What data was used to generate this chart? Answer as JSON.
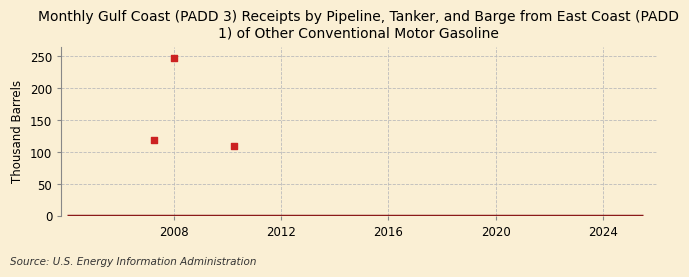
{
  "title": "Monthly Gulf Coast (PADD 3) Receipts by Pipeline, Tanker, and Barge from East Coast (PADD\n1) of Other Conventional Motor Gasoline",
  "ylabel": "Thousand Barrels",
  "source": "Source: U.S. Energy Information Administration",
  "background_color": "#faefd4",
  "plot_bg_color": "#faefd4",
  "line_color": "#8b1a1a",
  "marker_color": "#cc2222",
  "x_start": 2004,
  "x_end": 2025.5,
  "scatter_x": [
    2007.25,
    2008.0,
    2010.25
  ],
  "scatter_y": [
    119,
    248,
    110
  ],
  "xlim": [
    2003.8,
    2026.0
  ],
  "ylim": [
    0,
    265
  ],
  "yticks": [
    0,
    50,
    100,
    150,
    200,
    250
  ],
  "xticks": [
    2008,
    2012,
    2016,
    2020,
    2024
  ],
  "grid_color": "#bbbbbb",
  "baseline_linewidth": 2.5,
  "title_fontsize": 10,
  "ylabel_fontsize": 8.5,
  "source_fontsize": 7.5,
  "tick_fontsize": 8.5
}
